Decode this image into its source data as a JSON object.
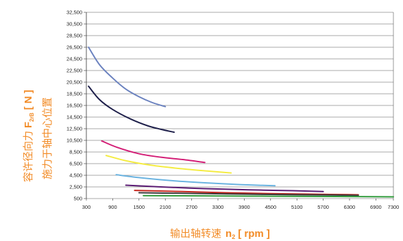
{
  "chart_data": {
    "type": "line",
    "xlabel": {
      "main": "输出轴转速",
      "symbol": "n",
      "sub": "2",
      "unit": "[ rpm ]"
    },
    "ylabel": {
      "line1": {
        "main": "容许径向力",
        "symbol": "F",
        "sub": "2rB",
        "unit": "[ N ]"
      },
      "line2": "施力于轴中心位置"
    },
    "xlim": [
      300,
      7300
    ],
    "ylim": [
      500,
      32500
    ],
    "x_ticks": [
      300,
      900,
      1500,
      2100,
      2700,
      3300,
      3900,
      4500,
      5100,
      5700,
      6300,
      6900,
      7300
    ],
    "x_tick_labels": [
      "300",
      "900",
      "1500",
      "2100",
      "2700",
      "3300",
      "3900",
      "4500",
      "5100",
      "5700",
      "6300",
      "6900",
      "7300"
    ],
    "y_ticks": [
      500,
      2500,
      4500,
      6500,
      8500,
      10500,
      12500,
      14500,
      16500,
      18500,
      20500,
      22500,
      24500,
      26500,
      28500,
      30500,
      32500
    ],
    "y_tick_labels": [
      "500",
      "2,500",
      "4,500",
      "6,500",
      "8,500",
      "10,500",
      "12,500",
      "14,500",
      "16,500",
      "18,500",
      "20,500",
      "22,500",
      "24,500",
      "26,500",
      "28,500",
      "30,500",
      "32,500"
    ],
    "grid": "horizontal",
    "series": [
      {
        "color": "#6b82bf",
        "x": [
          350,
          600,
          900,
          1200,
          1500,
          1800,
          2100
        ],
        "y": [
          26500,
          23500,
          21200,
          19300,
          18000,
          17000,
          16300
        ]
      },
      {
        "color": "#1e1f4a",
        "x": [
          350,
          600,
          900,
          1300,
          1700,
          2000,
          2300
        ],
        "y": [
          19800,
          17500,
          15800,
          14200,
          13000,
          12400,
          11900
        ]
      },
      {
        "color": "#d31e76",
        "x": [
          650,
          1000,
          1500,
          2000,
          2500,
          3000
        ],
        "y": [
          10400,
          9300,
          8200,
          7600,
          7200,
          6700
        ]
      },
      {
        "color": "#f4ec42",
        "x": [
          750,
          1200,
          1800,
          2500,
          3100,
          3600
        ],
        "y": [
          7900,
          7000,
          6200,
          5600,
          5200,
          4900
        ]
      },
      {
        "color": "#6ab3e0",
        "x": [
          980,
          1500,
          2200,
          3000,
          3800,
          4600
        ],
        "y": [
          4600,
          4100,
          3600,
          3200,
          2900,
          2700
        ]
      },
      {
        "color": "#5a1a73",
        "x": [
          1200,
          2000,
          3000,
          4000,
          5000,
          5700
        ],
        "y": [
          2800,
          2500,
          2200,
          2000,
          1850,
          1700
        ]
      },
      {
        "color": "#c5261d",
        "x": [
          1400,
          2500,
          3500,
          4500,
          5500,
          6500
        ],
        "y": [
          1900,
          1700,
          1500,
          1350,
          1250,
          1150
        ]
      },
      {
        "color": "#3a3a3a",
        "x": [
          1500,
          3000,
          4500,
          6000,
          6500
        ],
        "y": [
          1500,
          1350,
          1200,
          1100,
          1050
        ]
      },
      {
        "color": "#2f9a3a",
        "x": [
          1600,
          3000,
          4500,
          6000,
          7300
        ],
        "y": [
          1000,
          950,
          900,
          850,
          800
        ]
      }
    ]
  }
}
